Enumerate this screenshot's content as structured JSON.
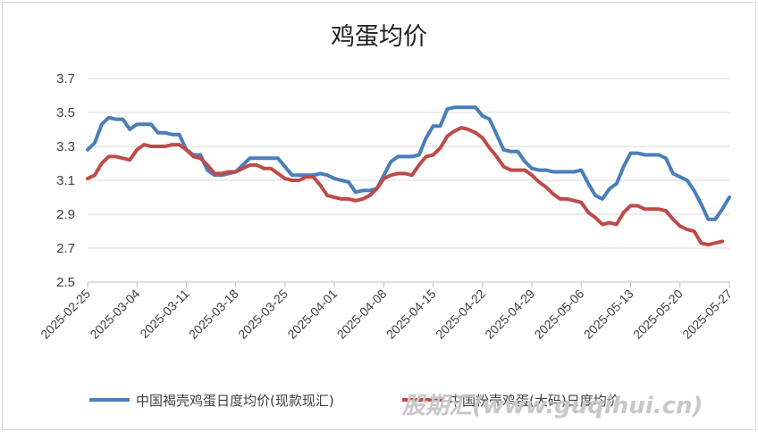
{
  "chart_data": {
    "type": "line",
    "title": "鸡蛋均价",
    "xlabel": "",
    "ylabel": "",
    "ylim": [
      2.5,
      3.7
    ],
    "yticks": [
      "2.5",
      "2.7",
      "2.9",
      "3.1",
      "3.3",
      "3.5",
      "3.7"
    ],
    "xticks": [
      "2025-02-25",
      "2025-03-04",
      "2025-03-11",
      "2025-03-18",
      "2025-03-25",
      "2025-04-01",
      "2025-04-08",
      "2025-04-15",
      "2025-04-22",
      "2025-04-29",
      "2025-05-06",
      "2025-05-13",
      "2025-05-20",
      "2025-05-27"
    ],
    "grid": "horizontal",
    "legend_position": "bottom",
    "series": [
      {
        "name": "中国褐壳鸡蛋日度均价(现款现汇)",
        "color": "#4a7ebb",
        "values": [
          3.28,
          3.32,
          3.43,
          3.47,
          3.46,
          3.46,
          3.4,
          3.43,
          3.43,
          3.43,
          3.38,
          3.38,
          3.37,
          3.37,
          3.28,
          3.25,
          3.25,
          3.16,
          3.13,
          3.13,
          3.14,
          3.15,
          3.19,
          3.23,
          3.23,
          3.23,
          3.23,
          3.23,
          3.18,
          3.13,
          3.13,
          3.13,
          3.13,
          3.14,
          3.13,
          3.11,
          3.1,
          3.09,
          3.03,
          3.04,
          3.04,
          3.05,
          3.13,
          3.21,
          3.24,
          3.24,
          3.24,
          3.25,
          3.35,
          3.42,
          3.42,
          3.52,
          3.53,
          3.53,
          3.53,
          3.53,
          3.48,
          3.46,
          3.37,
          3.28,
          3.27,
          3.27,
          3.21,
          3.17,
          3.16,
          3.16,
          3.15,
          3.15,
          3.15,
          3.15,
          3.16,
          3.08,
          3.01,
          2.99,
          3.05,
          3.08,
          3.18,
          3.26,
          3.26,
          3.25,
          3.25,
          3.25,
          3.23,
          3.14,
          3.12,
          3.1,
          3.04,
          2.96,
          2.87,
          2.87,
          2.93,
          3.0
        ]
      },
      {
        "name": "中国粉壳鸡蛋(大码)日度均价",
        "color": "#be4b48",
        "values": [
          3.11,
          3.13,
          3.2,
          3.24,
          3.24,
          3.23,
          3.22,
          3.28,
          3.31,
          3.3,
          3.3,
          3.3,
          3.31,
          3.31,
          3.28,
          3.24,
          3.23,
          3.19,
          3.14,
          3.14,
          3.15,
          3.15,
          3.17,
          3.19,
          3.19,
          3.17,
          3.17,
          3.14,
          3.11,
          3.1,
          3.1,
          3.12,
          3.12,
          3.07,
          3.01,
          3.0,
          2.99,
          2.99,
          2.98,
          2.99,
          3.01,
          3.05,
          3.11,
          3.13,
          3.14,
          3.14,
          3.13,
          3.19,
          3.24,
          3.25,
          3.29,
          3.36,
          3.39,
          3.41,
          3.4,
          3.38,
          3.35,
          3.29,
          3.24,
          3.18,
          3.16,
          3.16,
          3.16,
          3.13,
          3.09,
          3.06,
          3.02,
          2.99,
          2.99,
          2.98,
          2.97,
          2.91,
          2.88,
          2.84,
          2.85,
          2.84,
          2.91,
          2.95,
          2.95,
          2.93,
          2.93,
          2.93,
          2.92,
          2.87,
          2.83,
          2.81,
          2.8,
          2.73,
          2.72,
          2.73,
          2.74
        ]
      }
    ]
  },
  "watermark": "股期汇(www.guqihui.cn)"
}
